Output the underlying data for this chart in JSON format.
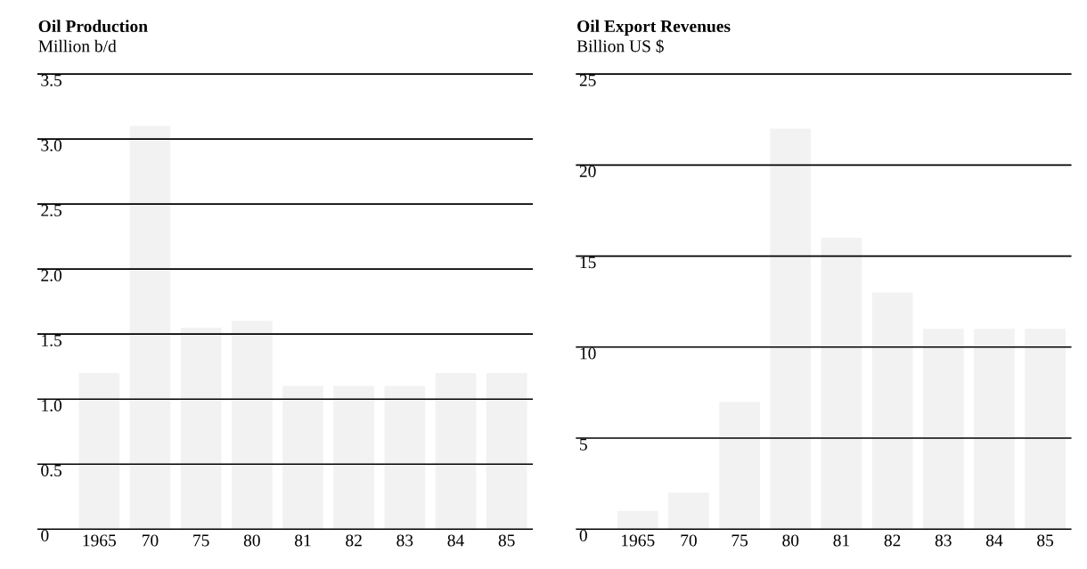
{
  "chart_data": [
    {
      "type": "bar",
      "title": "Oil Production",
      "subtitle": "Million b/d",
      "categories": [
        "1965",
        "70",
        "75",
        "80",
        "81",
        "82",
        "83",
        "84",
        "85"
      ],
      "values": [
        1.2,
        3.1,
        1.55,
        1.6,
        1.1,
        1.1,
        1.1,
        1.2,
        1.2
      ],
      "color": "#f2f2f2",
      "ylim": [
        0,
        3.5
      ],
      "yticks": [
        {
          "value": 0,
          "label": "0"
        },
        {
          "value": 0.5,
          "label": "0.5"
        },
        {
          "value": 1.0,
          "label": "1.0"
        },
        {
          "value": 1.5,
          "label": "1.5"
        },
        {
          "value": 2.0,
          "label": "2.0"
        },
        {
          "value": 2.5,
          "label": "2.5"
        },
        {
          "value": 3.0,
          "label": "3.0"
        },
        {
          "value": 3.5,
          "label": "3.5"
        }
      ],
      "grid": "y"
    },
    {
      "type": "bar",
      "title": "Oil Export Revenues",
      "subtitle": "Billion US $",
      "categories": [
        "1965",
        "70",
        "75",
        "80",
        "81",
        "82",
        "83",
        "84",
        "85"
      ],
      "values": [
        1,
        2,
        7,
        22,
        16,
        13,
        11,
        11,
        11
      ],
      "color": "#f2f2f2",
      "ylim": [
        0,
        25
      ],
      "yticks": [
        0,
        5,
        10,
        15,
        20,
        25
      ],
      "grid": "y"
    }
  ]
}
